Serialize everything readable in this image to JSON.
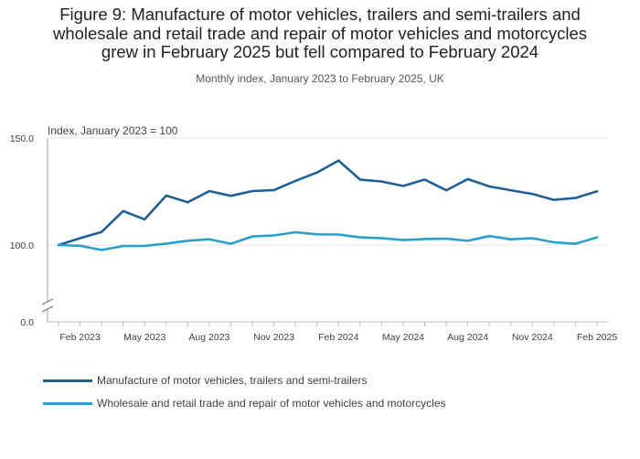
{
  "title_lines": [
    "Figure 9: Manufacture of motor vehicles, trailers and semi-trailers and",
    "wholesale and retail trade and repair of motor vehicles and motorcycles",
    "grew in February 2025 but fell compared to February 2024"
  ],
  "subtitle": "Monthly index, January 2023 to February 2025, UK",
  "chart_data": {
    "type": "line",
    "ylabel": "Index, January 2023 = 100",
    "y_ticks": [
      "150.0",
      "100.0",
      "0.0"
    ],
    "axis_break": true,
    "x": [
      "Jan 2023",
      "Feb 2023",
      "Mar 2023",
      "Apr 2023",
      "May 2023",
      "Jun 2023",
      "Jul 2023",
      "Aug 2023",
      "Sep 2023",
      "Oct 2023",
      "Nov 2023",
      "Dec 2023",
      "Jan 2024",
      "Feb 2024",
      "Mar 2024",
      "Apr 2024",
      "May 2024",
      "Jun 2024",
      "Jul 2024",
      "Aug 2024",
      "Sep 2024",
      "Oct 2024",
      "Nov 2024",
      "Dec 2024",
      "Jan 2025",
      "Feb 2025"
    ],
    "x_tick_labels": [
      "Feb 2023",
      "May 2023",
      "Aug 2023",
      "Nov 2023",
      "Feb 2024",
      "May 2024",
      "Aug 2024",
      "Nov 2024",
      "Feb 2025"
    ],
    "grid": "horizontal",
    "legend_position": "bottom-left",
    "series": [
      {
        "name": "Manufacture of motor vehicles, trailers and semi-trailers",
        "color": "#206095",
        "values": [
          100.0,
          103.2,
          106.1,
          115.9,
          112.0,
          123.1,
          120.0,
          125.2,
          123.0,
          125.2,
          125.7,
          130.0,
          133.9,
          139.5,
          130.6,
          129.7,
          127.6,
          130.6,
          125.6,
          130.8,
          127.4,
          125.6,
          123.9,
          121.1,
          122.0,
          125.1
        ]
      },
      {
        "name": "Wholesale and retail trade and repair of motor vehicles and motorcycles",
        "color": "#27a0cc",
        "values": [
          100.0,
          99.0,
          93.6,
          98.7,
          98.9,
          100.7,
          102.0,
          102.7,
          100.6,
          104.0,
          104.5,
          106.0,
          105.0,
          104.9,
          103.6,
          103.2,
          102.3,
          102.8,
          103.0,
          102.0,
          104.2,
          102.7,
          103.2,
          101.3,
          100.6,
          103.6
        ]
      }
    ]
  }
}
